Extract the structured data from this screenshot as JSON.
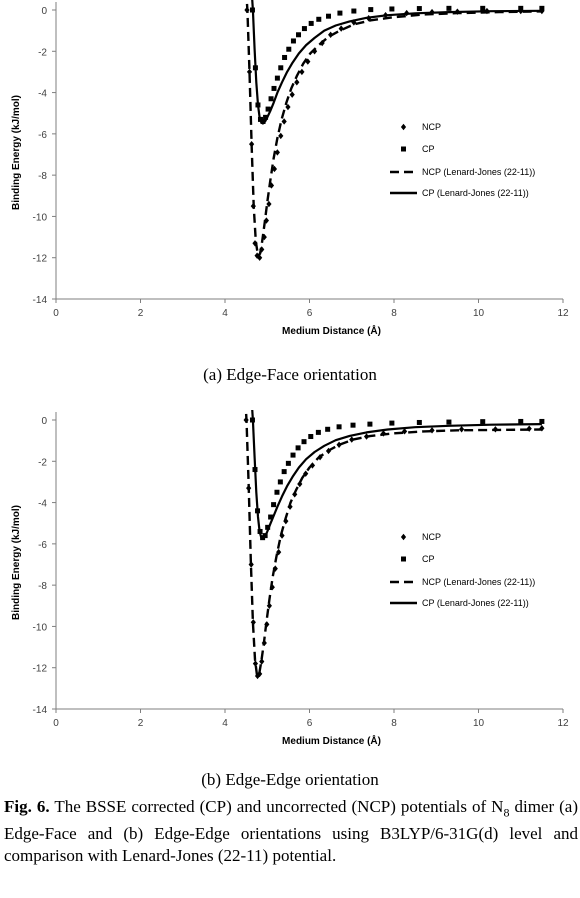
{
  "chart_data": [
    {
      "type": "scatter",
      "xlabel": "Medium  Distance (Å)",
      "ylabel": "Binding Energy (kJ/mol)",
      "xlim": [
        0,
        12
      ],
      "ylim": [
        -14,
        0
      ],
      "xticks": [
        "0",
        "2",
        "4",
        "6",
        "8",
        "10",
        "12"
      ],
      "yticks": [
        "0",
        "-2",
        "-4",
        "-6",
        "-8",
        "-10",
        "-12",
        "-14"
      ],
      "grid": false,
      "legend_position": "center-right",
      "series": [
        {
          "name": "NCP",
          "kind": "points",
          "marker": "diamond",
          "x": [
            4.52,
            4.58,
            4.63,
            4.67,
            4.71,
            4.76,
            4.82,
            4.87,
            4.93,
            4.98,
            5.04,
            5.1,
            5.17,
            5.24,
            5.32,
            5.4,
            5.49,
            5.59,
            5.7,
            5.82,
            5.96,
            6.12,
            6.3,
            6.5,
            6.75,
            7.05,
            7.4,
            7.8,
            8.3,
            8.9,
            9.5,
            10.2,
            11.0,
            11.5
          ],
          "y": [
            0.0,
            -3.0,
            -6.5,
            -9.5,
            -11.3,
            -11.9,
            -12.0,
            -11.6,
            -11.0,
            -10.2,
            -9.4,
            -8.5,
            -7.7,
            -6.9,
            -6.1,
            -5.4,
            -4.7,
            -4.1,
            -3.5,
            -3.0,
            -2.5,
            -2.0,
            -1.6,
            -1.2,
            -0.9,
            -0.6,
            -0.4,
            -0.25,
            -0.15,
            -0.1,
            -0.08,
            -0.05,
            -0.05,
            -0.05
          ]
        },
        {
          "name": "CP",
          "kind": "points",
          "marker": "square",
          "x": [
            4.65,
            4.72,
            4.78,
            4.84,
            4.9,
            4.96,
            5.02,
            5.09,
            5.16,
            5.24,
            5.32,
            5.41,
            5.51,
            5.62,
            5.74,
            5.88,
            6.04,
            6.22,
            6.45,
            6.72,
            7.05,
            7.45,
            7.95,
            8.6,
            9.3,
            10.1,
            11.0,
            11.5
          ],
          "y": [
            0.0,
            -2.8,
            -4.6,
            -5.3,
            -5.4,
            -5.2,
            -4.8,
            -4.3,
            -3.8,
            -3.3,
            -2.8,
            -2.3,
            -1.9,
            -1.5,
            -1.2,
            -0.9,
            -0.65,
            -0.45,
            -0.3,
            -0.15,
            -0.05,
            0.02,
            0.05,
            0.07,
            0.08,
            0.08,
            0.08,
            0.08
          ]
        },
        {
          "name": "NCP (Lenard-Jones (22-11))",
          "kind": "line",
          "style": "dashed",
          "x": [
            4.53,
            4.58,
            4.63,
            4.68,
            4.73,
            4.78,
            4.83,
            4.88,
            4.94,
            5.0,
            5.07,
            5.15,
            5.24,
            5.34,
            5.45,
            5.57,
            5.7,
            5.85,
            6.02,
            6.22,
            6.45,
            6.72,
            7.05,
            7.45,
            8.0,
            8.7,
            9.5,
            10.5,
            11.5
          ],
          "y": [
            0.0,
            -3.0,
            -6.5,
            -9.5,
            -11.2,
            -11.9,
            -11.8,
            -11.2,
            -10.3,
            -9.3,
            -8.3,
            -7.2,
            -6.2,
            -5.3,
            -4.5,
            -3.8,
            -3.2,
            -2.6,
            -2.1,
            -1.7,
            -1.3,
            -1.0,
            -0.7,
            -0.5,
            -0.35,
            -0.22,
            -0.15,
            -0.1,
            -0.07
          ]
        },
        {
          "name": "CP (Lenard-Jones (22-11))",
          "kind": "line",
          "style": "solid",
          "x": [
            4.66,
            4.7,
            4.74,
            4.78,
            4.82,
            4.86,
            4.9,
            4.95,
            5.0,
            5.07,
            5.15,
            5.24,
            5.35,
            5.47,
            5.6,
            5.75,
            5.92,
            6.12,
            6.35,
            6.62,
            6.95,
            7.35,
            7.85,
            8.5,
            9.3,
            10.3,
            11.5
          ],
          "y": [
            0.0,
            -1.9,
            -3.5,
            -4.6,
            -5.2,
            -5.45,
            -5.5,
            -5.4,
            -5.2,
            -4.9,
            -4.5,
            -4.0,
            -3.5,
            -3.0,
            -2.55,
            -2.1,
            -1.7,
            -1.35,
            -1.0,
            -0.75,
            -0.55,
            -0.38,
            -0.25,
            -0.16,
            -0.1,
            -0.06,
            -0.04
          ]
        }
      ]
    },
    {
      "type": "scatter",
      "xlabel": "Medium  Distance (Å)",
      "ylabel": "Binding Energy (kJ/mol)",
      "xlim": [
        0,
        12
      ],
      "ylim": [
        -14,
        0
      ],
      "xticks": [
        "0",
        "2",
        "4",
        "6",
        "8",
        "10",
        "12"
      ],
      "yticks": [
        "0",
        "-2",
        "-4",
        "-6",
        "-8",
        "-10",
        "-12",
        "-14"
      ],
      "grid": false,
      "legend_position": "center-right",
      "series": [
        {
          "name": "NCP",
          "kind": "points",
          "marker": "diamond",
          "x": [
            4.5,
            4.56,
            4.62,
            4.67,
            4.72,
            4.77,
            4.82,
            4.87,
            4.93,
            4.99,
            5.05,
            5.12,
            5.19,
            5.27,
            5.35,
            5.44,
            5.54,
            5.65,
            5.77,
            5.91,
            6.07,
            6.25,
            6.45,
            6.7,
            7.0,
            7.35,
            7.75,
            8.25,
            8.9,
            9.6,
            10.4,
            11.2,
            11.5
          ],
          "y": [
            0.0,
            -3.3,
            -7.0,
            -9.8,
            -11.8,
            -12.4,
            -12.3,
            -11.7,
            -10.8,
            -9.9,
            -9.0,
            -8.1,
            -7.2,
            -6.4,
            -5.6,
            -4.9,
            -4.2,
            -3.6,
            -3.1,
            -2.6,
            -2.2,
            -1.8,
            -1.5,
            -1.2,
            -0.95,
            -0.8,
            -0.65,
            -0.55,
            -0.5,
            -0.45,
            -0.45,
            -0.42,
            -0.4
          ]
        },
        {
          "name": "CP",
          "kind": "points",
          "marker": "square",
          "x": [
            4.65,
            4.71,
            4.77,
            4.83,
            4.89,
            4.95,
            5.01,
            5.08,
            5.15,
            5.23,
            5.31,
            5.4,
            5.5,
            5.61,
            5.73,
            5.87,
            6.03,
            6.21,
            6.43,
            6.7,
            7.03,
            7.43,
            7.95,
            8.6,
            9.3,
            10.1,
            11.0,
            11.5
          ],
          "y": [
            0.0,
            -2.4,
            -4.4,
            -5.4,
            -5.7,
            -5.6,
            -5.2,
            -4.7,
            -4.1,
            -3.5,
            -3.0,
            -2.5,
            -2.1,
            -1.7,
            -1.35,
            -1.05,
            -0.8,
            -0.6,
            -0.45,
            -0.33,
            -0.25,
            -0.2,
            -0.15,
            -0.12,
            -0.1,
            -0.08,
            -0.07,
            -0.07
          ]
        },
        {
          "name": "NCP (Lenard-Jones (22-11))",
          "kind": "line",
          "style": "dashed",
          "x": [
            4.51,
            4.56,
            4.61,
            4.66,
            4.71,
            4.76,
            4.81,
            4.86,
            4.92,
            4.98,
            5.05,
            5.13,
            5.22,
            5.32,
            5.43,
            5.55,
            5.68,
            5.83,
            6.0,
            6.2,
            6.43,
            6.7,
            7.03,
            7.43,
            7.98,
            8.7,
            9.5,
            10.5,
            11.5
          ],
          "y": [
            0.0,
            -3.2,
            -6.8,
            -9.8,
            -11.6,
            -12.4,
            -12.3,
            -11.7,
            -10.8,
            -9.8,
            -8.7,
            -7.6,
            -6.6,
            -5.6,
            -4.8,
            -4.0,
            -3.4,
            -2.8,
            -2.3,
            -1.85,
            -1.5,
            -1.2,
            -0.95,
            -0.78,
            -0.65,
            -0.55,
            -0.5,
            -0.48,
            -0.46
          ]
        },
        {
          "name": "CP (Lenard-Jones (22-11))",
          "kind": "line",
          "style": "solid",
          "x": [
            4.66,
            4.7,
            4.74,
            4.78,
            4.82,
            4.86,
            4.9,
            4.95,
            5.0,
            5.07,
            5.15,
            5.24,
            5.35,
            5.47,
            5.6,
            5.75,
            5.92,
            6.12,
            6.35,
            6.62,
            6.95,
            7.35,
            7.85,
            8.5,
            9.3,
            10.3,
            11.5
          ],
          "y": [
            0.0,
            -1.8,
            -3.5,
            -4.7,
            -5.4,
            -5.7,
            -5.75,
            -5.65,
            -5.4,
            -5.05,
            -4.65,
            -4.2,
            -3.7,
            -3.2,
            -2.75,
            -2.3,
            -1.9,
            -1.55,
            -1.25,
            -0.98,
            -0.77,
            -0.6,
            -0.46,
            -0.35,
            -0.28,
            -0.23,
            -0.2
          ]
        }
      ]
    }
  ],
  "captions": {
    "panel_a": "(a) Edge-Face orientation",
    "panel_b": "(b) Edge-Edge orientation"
  },
  "figure_caption": {
    "label": "Fig. 6.",
    "text_1": " The BSSE corrected (CP) and uncorrected (NCP) potentials of N",
    "subscript": "8",
    "text_2": " dimer (a) Edge-Face and (b) Edge-Edge orientations using B3LYP/6-31G(d) level and comparison with Lenard-Jones (22-11) potential."
  }
}
